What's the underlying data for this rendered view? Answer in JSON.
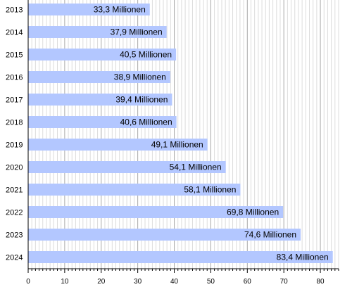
{
  "chart_data": {
    "type": "bar",
    "orientation": "horizontal",
    "categories": [
      "2013",
      "2014",
      "2015",
      "2016",
      "2017",
      "2018",
      "2019",
      "2020",
      "2021",
      "2022",
      "2023",
      "2024"
    ],
    "values": [
      33.3,
      37.9,
      40.5,
      38.9,
      39.4,
      40.6,
      49.1,
      54.1,
      58.1,
      69.8,
      74.6,
      83.4
    ],
    "data_labels": [
      "33,3 Millionen",
      "37,9 Millionen",
      "40,5 Millionen",
      "38,9 Millionen",
      "39,4 Millionen",
      "40,6 Millionen",
      "49,1 Millionen",
      "54,1 Millionen",
      "58,1 Millionen",
      "69,8 Millionen",
      "74,6 Millionen",
      "83,4 Millionen"
    ],
    "x_ticks": [
      "0",
      "10",
      "20",
      "30",
      "40",
      "50",
      "60",
      "70",
      "80"
    ],
    "xlim": [
      0,
      85
    ],
    "title": "",
    "xlabel": "",
    "ylabel": "",
    "grid": true,
    "bar_color": "#b3c7ff"
  }
}
